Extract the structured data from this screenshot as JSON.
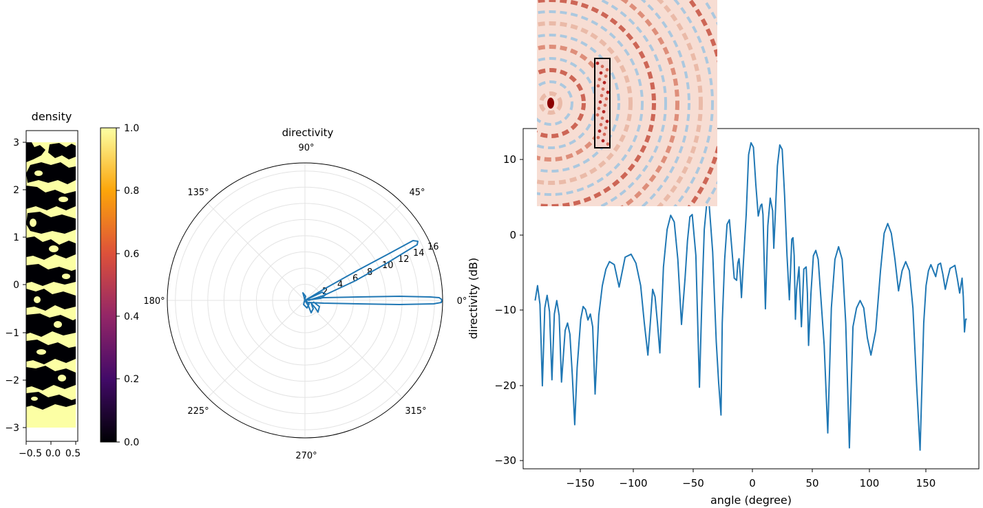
{
  "chart_data": [
    {
      "type": "heatmap",
      "title": "density",
      "xlim": [
        -0.5,
        0.5
      ],
      "ylim": [
        -3,
        3
      ],
      "x_ticks": [
        "−0.5",
        "0.0",
        "0.5"
      ],
      "y_ticks": [
        "3",
        "2",
        "1",
        "0",
        "−1",
        "−2",
        "−3"
      ],
      "colormap": [
        "#000004",
        "#420a68",
        "#932667",
        "#dd513a",
        "#fca50a",
        "#fcffa4"
      ],
      "colorbar": {
        "range": [
          0.0,
          1.0
        ],
        "ticks": [
          "1.0",
          "0.8",
          "0.6",
          "0.4",
          "0.2",
          "0.0"
        ]
      },
      "grid": false
    },
    {
      "type": "line",
      "projection": "polar",
      "title": "directivity",
      "angle_ticks": [
        "0°",
        "45°",
        "90°",
        "135°",
        "180°",
        "225°",
        "270°",
        "315°"
      ],
      "radial_ticks": [
        "2",
        "4",
        "6",
        "8",
        "10",
        "12",
        "14",
        "16"
      ],
      "rlim": [
        0,
        17
      ],
      "grid": true,
      "color": "#1f77b4",
      "main_lobes": [
        {
          "angle": 0,
          "radius": 16.2
        },
        {
          "angle": 29,
          "radius": 14.3
        }
      ]
    },
    {
      "type": "line",
      "xlabel": "angle (degree)",
      "ylabel": "directivity (dB)",
      "xlim": [
        -190,
        190
      ],
      "ylim": [
        -31.5,
        14
      ],
      "x_ticks": [
        "−150",
        "−100",
        "−50",
        "0",
        "50",
        "100",
        "150"
      ],
      "y_ticks": [
        "10",
        "0",
        "−10",
        "−20",
        "−30"
      ],
      "grid": false,
      "color": "#1f77b4",
      "series": [
        {
          "x": [
            -180,
            -178,
            -176,
            -174,
            -172,
            -170,
            -168,
            -166,
            -164,
            -162,
            -160,
            -158,
            -155,
            -153,
            -151,
            -149,
            -147,
            -145,
            -142,
            -140,
            -138,
            -136,
            -134,
            -132,
            -130,
            -127,
            -124,
            -121,
            -118,
            -114,
            -110,
            -105,
            -100,
            -96,
            -92,
            -89,
            -86,
            -84,
            -82,
            -80,
            -78,
            -76,
            -73,
            -70,
            -67,
            -64,
            -61,
            -58,
            -55,
            -53,
            -51,
            -49,
            -46,
            -43,
            -41,
            -39,
            -37,
            -35,
            -32,
            -29,
            -27,
            -25,
            -24,
            -22,
            -20,
            -18,
            -16,
            -14,
            -12,
            -11,
            -10,
            -9,
            -8,
            -6,
            -4,
            -2,
            0,
            2,
            4,
            6,
            8,
            9,
            10,
            12,
            14,
            16,
            18,
            19,
            20,
            22,
            24,
            26,
            28,
            30,
            32,
            34,
            35,
            36,
            37,
            38,
            40,
            42,
            43,
            44,
            46,
            47,
            48,
            50,
            52,
            54,
            56,
            58,
            61,
            64,
            67,
            70,
            73,
            76,
            79,
            82,
            85,
            88,
            91,
            94,
            97,
            100,
            104,
            108,
            111,
            114,
            117,
            120,
            123,
            126,
            129,
            132,
            135,
            138,
            141,
            144,
            146,
            148,
            150,
            152,
            154,
            156,
            158,
            160,
            162,
            164,
            166,
            168,
            170,
            172,
            174,
            176,
            177,
            178,
            179,
            180
          ],
          "y": [
            -9.0,
            -7.0,
            -9.5,
            -20.4,
            -10.0,
            -8.3,
            -10.5,
            -19.6,
            -10.8,
            -9.0,
            -11.0,
            -19.9,
            -13.0,
            -12.0,
            -13.5,
            -19.0,
            -25.6,
            -18.0,
            -11.5,
            -9.8,
            -10.2,
            -11.6,
            -10.8,
            -12.5,
            -21.5,
            -11.0,
            -7.0,
            -4.8,
            -3.8,
            -4.2,
            -7.2,
            -3.2,
            -2.8,
            -4.0,
            -7.0,
            -12.0,
            -16.3,
            -12.0,
            -7.5,
            -8.5,
            -12.0,
            -16.0,
            -4.5,
            0.5,
            2.4,
            1.5,
            -3.5,
            -12.2,
            -6.0,
            -1.0,
            2.2,
            2.5,
            -3.0,
            -20.6,
            -9.0,
            0.5,
            3.8,
            4.1,
            -2.5,
            -14.5,
            -20.0,
            -24.3,
            -12.0,
            -3.5,
            1.2,
            1.8,
            -2.0,
            -6.0,
            -6.3,
            -4.0,
            -3.4,
            -5.5,
            -8.6,
            -3.0,
            2.5,
            10.5,
            12.1,
            11.5,
            6.5,
            2.3,
            3.7,
            3.9,
            2.5,
            -10.1,
            1.0,
            4.7,
            3.0,
            -2.0,
            1.5,
            9.0,
            11.8,
            11.2,
            5.0,
            -3.0,
            -8.9,
            -0.8,
            -0.6,
            -3.0,
            -11.5,
            -7.5,
            -4.5,
            -12.5,
            -9.0,
            -4.8,
            -4.5,
            -8.0,
            -15.0,
            -8.0,
            -3.0,
            -2.3,
            -3.5,
            -8.0,
            -15.0,
            -26.7,
            -10.0,
            -3.5,
            -1.8,
            -3.5,
            -12.0,
            -28.7,
            -12.5,
            -10.0,
            -9.0,
            -10.0,
            -14.0,
            -16.3,
            -13.0,
            -5.0,
            0.0,
            1.3,
            0.0,
            -3.5,
            -7.7,
            -5.0,
            -3.8,
            -5.0,
            -10.0,
            -20.0,
            -29.0,
            -12.0,
            -7.0,
            -5.0,
            -4.2,
            -5.0,
            -5.8,
            -4.2,
            -4.0,
            -5.5,
            -7.5,
            -6.0,
            -4.7,
            -4.5,
            -4.3,
            -6.0,
            -8.0,
            -6.0,
            -8.5,
            -13.2,
            -11.5,
            -11.5
          ]
        }
      ]
    }
  ]
}
